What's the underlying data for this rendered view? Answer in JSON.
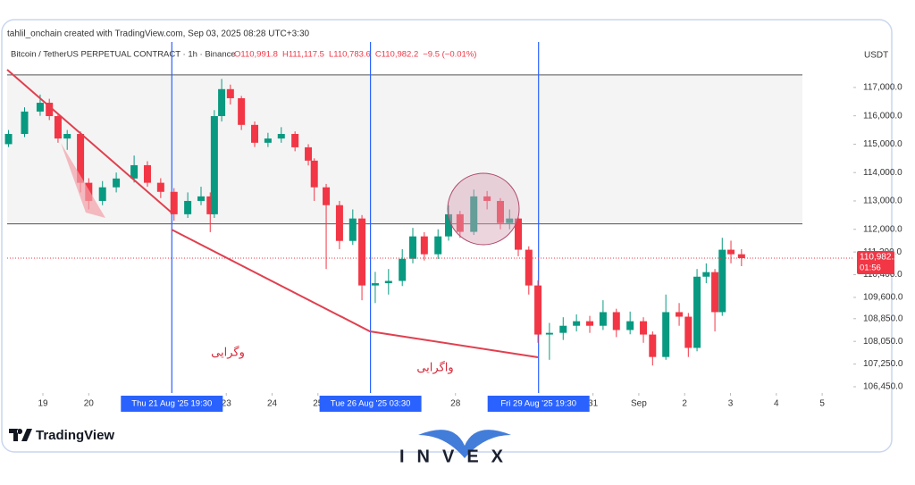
{
  "chart_data": {
    "type": "candlestick",
    "credit": "tahlil_onchain created with TradingView.com, Sep 03, 2025 08:28 UTC+3:30",
    "symbol": "Bitcoin / TetherUS PERPETUAL CONTRACT · 1h · Binance",
    "ohlc_header": [
      "O110,991.8",
      "H111,117.5",
      "L110,783.6",
      "C110,982.2",
      "−9.5 (−0.01%)"
    ],
    "currency": "USDT",
    "up_color": "#089981",
    "down_color": "#f23645",
    "xlim": [
      18.22,
      36.68
    ],
    "ylim": [
      106230,
      118130
    ],
    "xticks": [
      19,
      20,
      23,
      24,
      25,
      28,
      31,
      {
        "value": 32,
        "label": "Sep"
      },
      {
        "value": 33,
        "label": "2"
      },
      {
        "value": 34,
        "label": "3"
      },
      {
        "value": 35,
        "label": "4"
      },
      {
        "value": 36,
        "label": "5"
      }
    ],
    "x_markers": [
      {
        "value": 21.8125,
        "label": "Thu 21 Aug '25   19:30"
      },
      {
        "value": 26.1458,
        "label": "Tue 26 Aug '25   03:30"
      },
      {
        "value": 29.8125,
        "label": "Fri 29 Aug '25   19:30"
      }
    ],
    "yticks": [
      {
        "value": 117000,
        "label": "117,000.0"
      },
      {
        "value": 116000,
        "label": "116,000.0"
      },
      {
        "value": 115000,
        "label": "115,000.0"
      },
      {
        "value": 114000,
        "label": "114,000.0"
      },
      {
        "value": 113000,
        "label": "113,000.0"
      },
      {
        "value": 112000,
        "label": "112,000.0"
      },
      {
        "value": 111200,
        "label": "111,200.0"
      },
      {
        "value": 110400,
        "label": "110,400.0"
      },
      {
        "value": 109600,
        "label": "109,600.0"
      },
      {
        "value": 108850,
        "label": "108,850.0"
      },
      {
        "value": 108050,
        "label": "108,050.0"
      },
      {
        "value": 107250,
        "label": "107,250.0"
      },
      {
        "value": 106450,
        "label": "106,450.0"
      }
    ],
    "levels": [
      117440,
      112190
    ],
    "last_price": {
      "value": 110982.2,
      "label": "110,982.2"
    },
    "countdown": "01:56",
    "annotations": [
      "وگرایی",
      "واگرایی"
    ],
    "x": [
      18.25,
      18.6,
      18.94,
      19.14,
      19.33,
      19.53,
      19.82,
      20.0,
      20.3,
      20.6,
      20.99,
      21.28,
      21.57,
      21.86,
      22.16,
      22.45,
      22.65,
      22.74,
      22.9,
      23.09,
      23.33,
      23.62,
      23.91,
      24.2,
      24.5,
      24.79,
      24.92,
      25.18,
      25.47,
      25.76,
      25.96,
      26.25,
      26.54,
      26.84,
      27.07,
      27.32,
      27.62,
      27.85,
      28.1,
      28.4,
      28.69,
      28.98,
      29.18,
      29.37,
      29.6,
      29.8,
      30.05,
      30.35,
      30.64,
      30.93,
      31.22,
      31.51,
      31.81,
      32.1,
      32.3,
      32.59,
      32.88,
      33.08,
      33.27,
      33.47,
      33.66,
      33.82,
      34.01,
      34.24
    ],
    "open": [
      115000,
      115360,
      116150,
      116460,
      115990,
      115200,
      115360,
      113640,
      113000,
      113480,
      113790,
      114260,
      113640,
      113320,
      112530,
      113000,
      113160,
      112530,
      115990,
      116940,
      116620,
      115680,
      115050,
      115200,
      115360,
      114890,
      114420,
      113480,
      112850,
      111590,
      112380,
      110020,
      110100,
      110180,
      110960,
      111750,
      111120,
      111750,
      112530,
      111910,
      113160,
      113000,
      112220,
      112380,
      111280,
      110020,
      108290,
      108350,
      108600,
      108760,
      108600,
      109080,
      108450,
      108760,
      108290,
      107500,
      109080,
      108920,
      107820,
      110330,
      110490,
      109080,
      111280,
      111120
    ],
    "high": [
      115500,
      116300,
      116750,
      116600,
      116100,
      115500,
      115450,
      113800,
      113700,
      114000,
      114600,
      114400,
      113800,
      113450,
      113300,
      113500,
      113300,
      116200,
      117300,
      117100,
      116700,
      115800,
      115400,
      115600,
      115450,
      115000,
      114500,
      113600,
      113000,
      112700,
      112500,
      110500,
      110600,
      111300,
      112050,
      111900,
      112000,
      112850,
      112650,
      113400,
      113350,
      113100,
      112700,
      112450,
      111400,
      110200,
      108700,
      108900,
      109000,
      108950,
      109500,
      109200,
      109100,
      108900,
      108400,
      109700,
      109400,
      109050,
      110600,
      110800,
      110600,
      111700,
      111600,
      111300
    ],
    "low": [
      114900,
      115250,
      116000,
      115850,
      115050,
      114800,
      113300,
      112700,
      112850,
      113300,
      113650,
      113500,
      113100,
      112300,
      112400,
      112850,
      111900,
      112400,
      115800,
      116400,
      115500,
      114900,
      114900,
      115050,
      114750,
      114250,
      113000,
      110600,
      111300,
      111450,
      109500,
      109400,
      109700,
      110000,
      110800,
      110900,
      110950,
      111600,
      111700,
      111800,
      112700,
      112000,
      112000,
      111050,
      109700,
      108000,
      107400,
      108100,
      108400,
      108350,
      108450,
      108200,
      108300,
      108000,
      107200,
      107400,
      108600,
      107500,
      107700,
      110100,
      108400,
      108950,
      110800,
      110700
    ],
    "close": [
      115360,
      116150,
      116460,
      115990,
      115200,
      115360,
      113640,
      113000,
      113480,
      113790,
      114260,
      113640,
      113320,
      112530,
      113000,
      113160,
      112530,
      115990,
      116940,
      116620,
      115680,
      115050,
      115200,
      115360,
      114890,
      114420,
      113480,
      112850,
      111590,
      112380,
      110020,
      110100,
      110180,
      110960,
      111750,
      111120,
      111750,
      112530,
      111910,
      113160,
      113000,
      112220,
      112380,
      111280,
      110020,
      108290,
      108350,
      108600,
      108760,
      108600,
      109080,
      108450,
      108760,
      108290,
      107500,
      109080,
      108920,
      107820,
      110330,
      110490,
      109080,
      111280,
      111120,
      110982.2
    ]
  },
  "branding": {
    "platform": "TradingView",
    "logo": "INVEX"
  }
}
